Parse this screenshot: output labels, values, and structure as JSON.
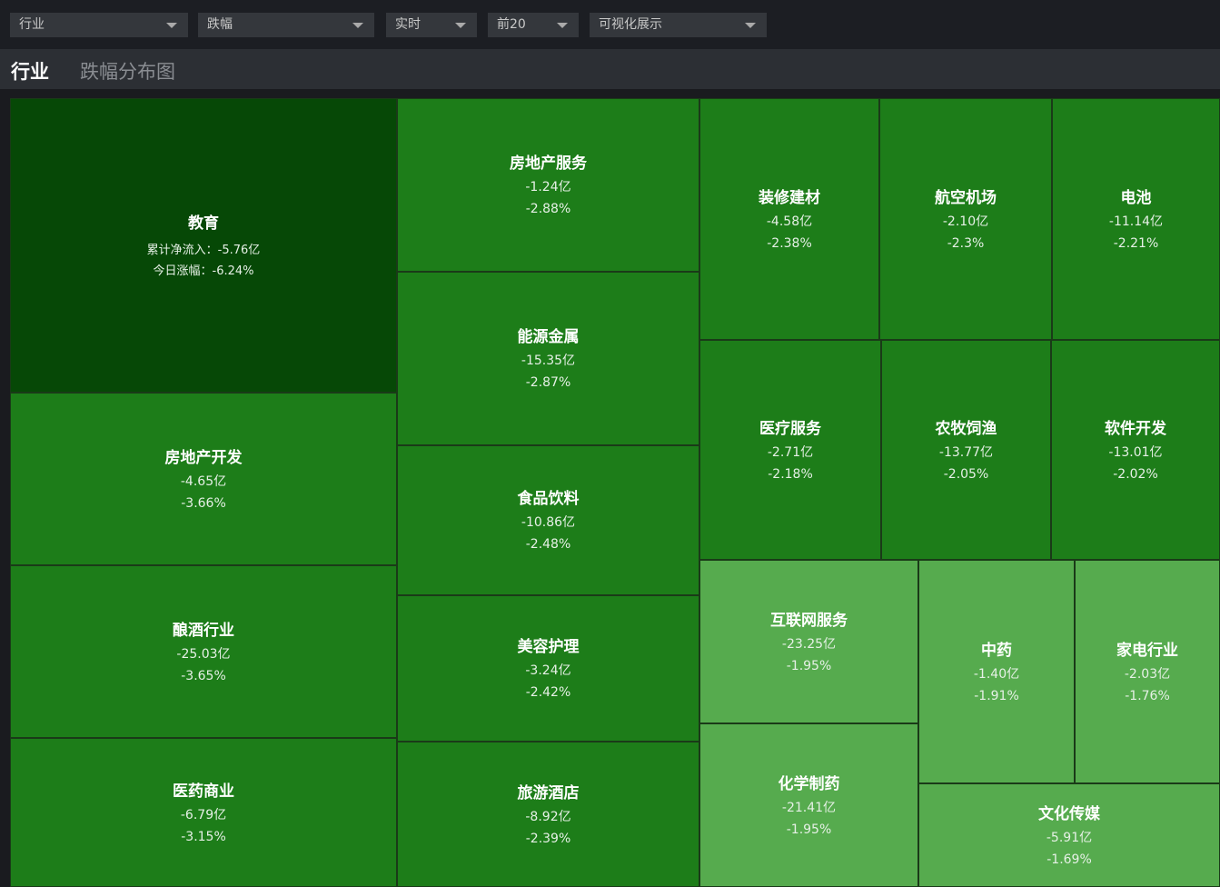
{
  "toolbar": {
    "dropdowns": [
      "行业",
      "跌幅",
      "实时",
      "前20",
      "可视化展示"
    ]
  },
  "tabs": [
    "行业",
    "跌幅分布图"
  ],
  "tiles": [
    {
      "name": "教育",
      "flow": "累计净流入：-5.76亿",
      "change": "今日涨幅：-6.24%",
      "color": "#064806"
    },
    {
      "name": "房地产开发",
      "flow": "-4.65亿",
      "change": "-3.66%",
      "color": "#1d7d19"
    },
    {
      "name": "酿酒行业",
      "flow": "-25.03亿",
      "change": "-3.65%",
      "color": "#1d7d19"
    },
    {
      "name": "医药商业",
      "flow": "-6.79亿",
      "change": "-3.15%",
      "color": "#1d7d19"
    },
    {
      "name": "房地产服务",
      "flow": "-1.24亿",
      "change": "-2.88%",
      "color": "#1d7d19"
    },
    {
      "name": "能源金属",
      "flow": "-15.35亿",
      "change": "-2.87%",
      "color": "#1d7d19"
    },
    {
      "name": "食品饮料",
      "flow": "-10.86亿",
      "change": "-2.48%",
      "color": "#1d7d19"
    },
    {
      "name": "美容护理",
      "flow": "-3.24亿",
      "change": "-2.42%",
      "color": "#1d7d19"
    },
    {
      "name": "旅游酒店",
      "flow": "-8.92亿",
      "change": "-2.39%",
      "color": "#1d7d19"
    },
    {
      "name": "装修建材",
      "flow": "-4.58亿",
      "change": "-2.38%",
      "color": "#1d7d19"
    },
    {
      "name": "航空机场",
      "flow": "-2.10亿",
      "change": "-2.3%",
      "color": "#1d7d19"
    },
    {
      "name": "电池",
      "flow": "-11.14亿",
      "change": "-2.21%",
      "color": "#1d7d19"
    },
    {
      "name": "医疗服务",
      "flow": "-2.71亿",
      "change": "-2.18%",
      "color": "#1d7d19"
    },
    {
      "name": "农牧饲渔",
      "flow": "-13.77亿",
      "change": "-2.05%",
      "color": "#1d7d19"
    },
    {
      "name": "软件开发",
      "flow": "-13.01亿",
      "change": "-2.02%",
      "color": "#1d7d19"
    },
    {
      "name": "互联网服务",
      "flow": "-23.25亿",
      "change": "-1.95%",
      "color": "#56ab4e"
    },
    {
      "name": "化学制药",
      "flow": "-21.41亿",
      "change": "-1.95%",
      "color": "#56ab4e"
    },
    {
      "name": "中药",
      "flow": "-1.40亿",
      "change": "-1.91%",
      "color": "#56ab4e"
    },
    {
      "name": "家电行业",
      "flow": "-2.03亿",
      "change": "-1.76%",
      "color": "#56ab4e"
    },
    {
      "name": "文化传媒",
      "flow": "-5.91亿",
      "change": "-1.69%",
      "color": "#56ab4e"
    }
  ]
}
